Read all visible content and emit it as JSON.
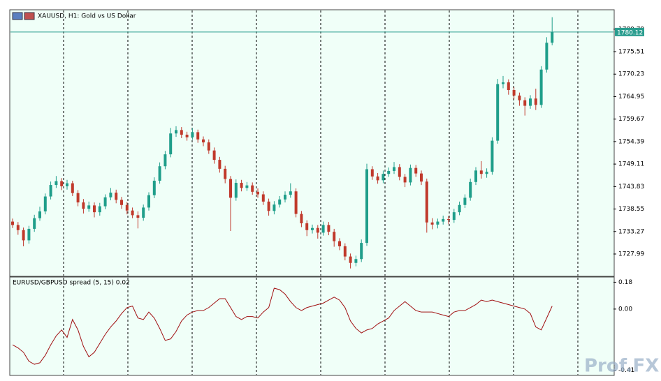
{
  "chart_data": [
    {
      "type": "candlestick",
      "title": "XAUUSD, H1:  Gold vs US Dollar",
      "open": [
        1735.6,
        1734.8,
        1733.6,
        1731.2,
        1733.9,
        1736.4,
        1738.0,
        1741.5,
        1744.2,
        1745.1,
        1743.9,
        1744.6,
        1742.3,
        1740.1,
        1738.6,
        1739.4,
        1737.8,
        1739.2,
        1741.3,
        1742.4,
        1740.7,
        1739.5,
        1738.2,
        1737.1,
        1736.5,
        1738.9,
        1741.8,
        1745.2,
        1748.6,
        1751.4,
        1756.3,
        1757.1,
        1756.0,
        1755.4,
        1756.6,
        1754.9,
        1754.2,
        1752.3,
        1750.1,
        1748.0,
        1745.6,
        1741.2,
        1744.7,
        1743.5,
        1744.1,
        1742.6,
        1742.0,
        1740.3,
        1738.1,
        1739.6,
        1740.8,
        1741.9,
        1742.7,
        1737.4,
        1735.2,
        1733.6,
        1734.1,
        1733.0,
        1734.8,
        1733.2,
        1731.0,
        1729.8,
        1727.4,
        1725.9,
        1726.8,
        1730.6,
        1747.9,
        1746.2,
        1745.3,
        1746.8,
        1747.5,
        1748.4,
        1746.1,
        1744.8,
        1748.2,
        1746.9,
        1745.0,
        1735.4,
        1734.9,
        1735.6,
        1736.2,
        1736.0,
        1737.8,
        1739.5,
        1741.2,
        1744.9,
        1747.6,
        1746.8,
        1747.3,
        1754.6,
        1767.9,
        1768.3,
        1766.5,
        1765.2,
        1764.1,
        1762.8,
        1764.5,
        1763.0,
        1771.3,
        1777.6
      ],
      "high": [
        1736.3,
        1735.5,
        1734.2,
        1734.6,
        1737.2,
        1739.1,
        1742.2,
        1745.0,
        1746.3,
        1745.8,
        1745.4,
        1745.2,
        1743.0,
        1740.9,
        1740.3,
        1740.1,
        1740.0,
        1742.0,
        1743.5,
        1743.1,
        1741.4,
        1740.2,
        1738.9,
        1738.0,
        1739.6,
        1742.5,
        1746.0,
        1749.5,
        1752.2,
        1757.6,
        1758.0,
        1757.8,
        1756.7,
        1757.5,
        1757.2,
        1755.6,
        1754.9,
        1753.0,
        1750.8,
        1748.7,
        1746.3,
        1745.5,
        1745.4,
        1744.9,
        1744.8,
        1743.4,
        1742.7,
        1741.0,
        1740.4,
        1741.6,
        1742.7,
        1744.6,
        1743.4,
        1738.1,
        1735.9,
        1734.9,
        1734.8,
        1735.6,
        1735.5,
        1733.9,
        1731.7,
        1730.5,
        1728.1,
        1727.6,
        1731.4,
        1749.2,
        1748.6,
        1747.0,
        1747.6,
        1748.3,
        1749.6,
        1749.1,
        1746.8,
        1749.0,
        1748.9,
        1747.6,
        1745.7,
        1736.4,
        1736.3,
        1737.0,
        1736.9,
        1738.6,
        1740.3,
        1742.0,
        1745.7,
        1748.4,
        1749.8,
        1748.1,
        1755.4,
        1769.1,
        1769.8,
        1769.0,
        1767.2,
        1765.9,
        1764.8,
        1765.3,
        1766.8,
        1772.1,
        1778.9,
        1783.6
      ],
      "low": [
        1734.1,
        1732.5,
        1729.8,
        1730.4,
        1733.2,
        1735.8,
        1737.3,
        1740.8,
        1743.5,
        1743.0,
        1743.1,
        1741.6,
        1739.2,
        1737.5,
        1737.9,
        1736.6,
        1737.0,
        1738.5,
        1740.6,
        1739.9,
        1738.6,
        1737.3,
        1736.4,
        1734.0,
        1735.8,
        1738.2,
        1741.1,
        1744.5,
        1747.9,
        1750.7,
        1755.5,
        1755.2,
        1754.6,
        1754.8,
        1754.1,
        1753.3,
        1751.5,
        1749.2,
        1747.1,
        1744.6,
        1733.4,
        1740.5,
        1742.7,
        1742.8,
        1741.9,
        1741.2,
        1739.5,
        1737.0,
        1737.3,
        1738.9,
        1740.1,
        1741.2,
        1736.6,
        1734.3,
        1732.2,
        1732.8,
        1731.6,
        1732.3,
        1732.4,
        1729.7,
        1728.9,
        1726.5,
        1724.6,
        1725.1,
        1726.1,
        1729.9,
        1745.4,
        1744.5,
        1744.6,
        1746.1,
        1746.8,
        1745.3,
        1743.7,
        1744.1,
        1746.1,
        1744.2,
        1733.0,
        1733.8,
        1734.0,
        1734.9,
        1735.0,
        1735.3,
        1737.1,
        1738.8,
        1740.5,
        1744.2,
        1745.7,
        1745.9,
        1746.6,
        1753.9,
        1766.9,
        1765.4,
        1764.3,
        1762.8,
        1760.5,
        1762.1,
        1761.8,
        1762.3,
        1770.6,
        1777.0
      ],
      "close": [
        1734.8,
        1733.6,
        1731.2,
        1733.9,
        1736.4,
        1738.0,
        1741.5,
        1744.2,
        1745.1,
        1743.9,
        1744.6,
        1742.3,
        1740.1,
        1738.6,
        1739.4,
        1737.8,
        1739.2,
        1741.3,
        1742.4,
        1740.7,
        1739.5,
        1738.2,
        1737.1,
        1736.5,
        1738.9,
        1741.8,
        1745.2,
        1748.6,
        1751.4,
        1756.3,
        1757.1,
        1756.0,
        1755.4,
        1756.6,
        1754.9,
        1754.2,
        1752.3,
        1750.1,
        1748.0,
        1745.6,
        1741.2,
        1744.7,
        1743.5,
        1744.1,
        1742.6,
        1742.0,
        1740.3,
        1738.1,
        1739.6,
        1740.8,
        1741.9,
        1742.7,
        1737.4,
        1735.2,
        1733.6,
        1734.1,
        1733.0,
        1734.8,
        1733.2,
        1731.0,
        1729.8,
        1727.4,
        1725.9,
        1726.8,
        1730.6,
        1747.9,
        1746.2,
        1745.3,
        1746.8,
        1747.5,
        1748.4,
        1746.1,
        1744.8,
        1748.2,
        1746.9,
        1745.0,
        1735.4,
        1734.9,
        1735.6,
        1736.2,
        1736.0,
        1737.8,
        1739.5,
        1741.2,
        1744.9,
        1747.6,
        1746.8,
        1747.3,
        1754.6,
        1767.9,
        1768.3,
        1766.5,
        1765.2,
        1764.1,
        1762.8,
        1764.5,
        1763.0,
        1771.3,
        1777.6,
        1780.1
      ],
      "up_color": "#1f9e8a",
      "down_color": "#c0392b",
      "ylim": [
        1722.91,
        1785.18
      ],
      "yticks": [
        {
          "value": 1780.79,
          "label": "1780.79"
        },
        1775.51,
        1770.23,
        1764.95,
        1759.67,
        1754.39,
        1749.11,
        1743.83,
        1738.55,
        1733.27,
        1727.99
      ],
      "last_price": 1780.12,
      "last_price_color": "#2a9d8f"
    },
    {
      "type": "line",
      "title": "EURUSD/GBPUSD spread (5, 15) 0.02",
      "color": "#a01010",
      "values": [
        -0.24,
        -0.26,
        -0.29,
        -0.35,
        -0.37,
        -0.36,
        -0.31,
        -0.24,
        -0.18,
        -0.14,
        -0.19,
        -0.07,
        -0.14,
        -0.25,
        -0.32,
        -0.29,
        -0.23,
        -0.17,
        -0.12,
        -0.08,
        -0.03,
        0.01,
        0.02,
        -0.06,
        -0.07,
        -0.02,
        -0.06,
        -0.13,
        -0.21,
        -0.2,
        -0.15,
        -0.08,
        -0.04,
        -0.02,
        -0.01,
        -0.01,
        0.01,
        0.04,
        0.07,
        0.07,
        0.01,
        -0.05,
        -0.07,
        -0.05,
        -0.05,
        -0.06,
        -0.02,
        0.01,
        0.14,
        0.13,
        0.1,
        0.05,
        0.01,
        -0.01,
        0.01,
        0.02,
        0.03,
        0.04,
        0.06,
        0.08,
        0.06,
        0.01,
        -0.08,
        -0.13,
        -0.16,
        -0.14,
        -0.13,
        -0.1,
        -0.08,
        -0.06,
        -0.01,
        0.02,
        0.05,
        0.02,
        -0.01,
        -0.02,
        -0.02,
        -0.02,
        -0.03,
        -0.04,
        -0.05,
        -0.02,
        -0.01,
        -0.01,
        0.01,
        0.03,
        0.06,
        0.05,
        0.06,
        0.05,
        0.04,
        0.03,
        0.02,
        0.01,
        0.0,
        -0.03,
        -0.12,
        -0.14,
        -0.06,
        0.02
      ],
      "ylim": [
        -0.44,
        0.21
      ],
      "yticks": [
        0.18,
        {
          "value": 0,
          "label": "0.00"
        },
        -0.41
      ]
    }
  ],
  "watermark": "Prof.FX"
}
